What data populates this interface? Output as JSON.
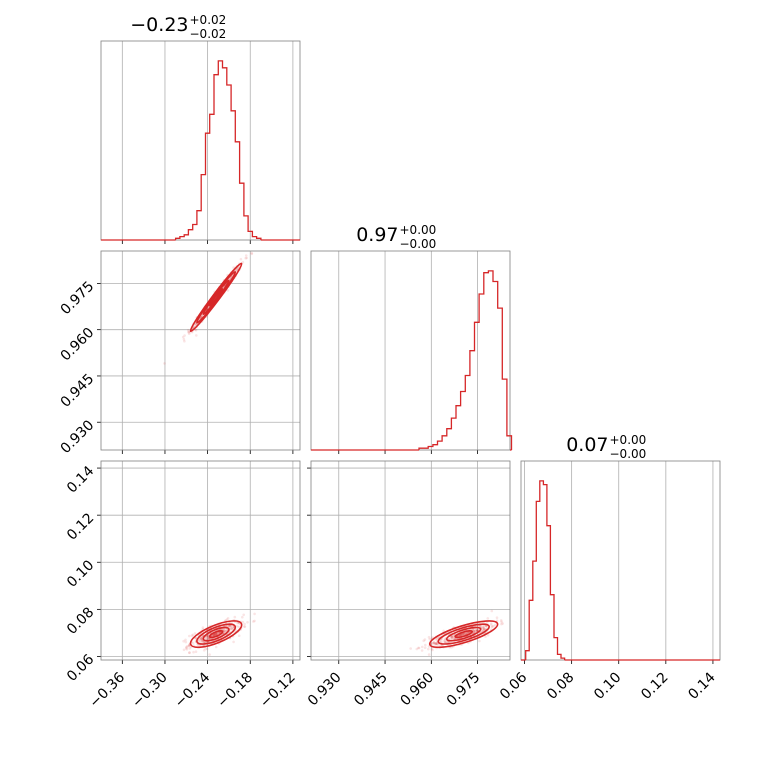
{
  "colors": {
    "series": "#d62728",
    "grid": "#b0b0b0",
    "frame": "#808080"
  },
  "chart_data": {
    "type": "corner",
    "parameters": [
      {
        "title": {
          "main": "−0.23",
          "sup": "+0.02",
          "sub": "−0.02"
        },
        "range": [
          -0.39,
          -0.11
        ],
        "ticks": [
          -0.36,
          -0.3,
          -0.24,
          -0.18,
          -0.12
        ],
        "tick_labels": [
          "−0.36",
          "−0.30",
          "−0.24",
          "−0.18",
          "−0.12"
        ],
        "histogram": {
          "bins": [
            -0.285,
            -0.279,
            -0.273,
            -0.267,
            -0.261,
            -0.255,
            -0.249,
            -0.243,
            -0.237,
            -0.231,
            -0.225,
            -0.219,
            -0.213,
            -0.207,
            -0.201,
            -0.195,
            -0.189,
            -0.183,
            -0.177,
            -0.171,
            -0.165
          ],
          "counts": [
            1,
            2,
            3,
            6,
            9,
            17,
            38,
            62,
            73,
            96,
            104,
            100,
            90,
            75,
            57,
            33,
            14,
            5,
            2,
            1
          ]
        }
      },
      {
        "title": {
          "main": "0.97",
          "sup": "+0.00",
          "sub": "−0.00"
        },
        "range": [
          0.921,
          0.9855
        ],
        "ticks": [
          0.93,
          0.945,
          0.96,
          0.975
        ],
        "tick_labels": [
          "0.930",
          "0.945",
          "0.960",
          "0.975"
        ],
        "histogram": {
          "bins": [
            0.956,
            0.9575,
            0.959,
            0.9605,
            0.962,
            0.9635,
            0.965,
            0.9665,
            0.968,
            0.9695,
            0.971,
            0.9725,
            0.974,
            0.9755,
            0.977,
            0.9785,
            0.98,
            0.9815,
            0.983,
            0.9845,
            0.986
          ],
          "counts": [
            1,
            1,
            2,
            3,
            5,
            8,
            12,
            18,
            25,
            33,
            42,
            56,
            72,
            88,
            100,
            101,
            95,
            80,
            40,
            8
          ]
        }
      },
      {
        "title": {
          "main": "0.07",
          "sup": "+0.00",
          "sub": "−0.00"
        },
        "range": [
          0.0585,
          0.143
        ],
        "ticks": [
          0.06,
          0.08,
          0.1,
          0.12,
          0.14
        ],
        "tick_labels": [
          "0.06",
          "0.08",
          "0.10",
          "0.12",
          "0.14"
        ],
        "histogram": {
          "bins": [
            0.0605,
            0.062,
            0.0635,
            0.065,
            0.0665,
            0.068,
            0.0695,
            0.071,
            0.0725,
            0.074,
            0.0755,
            0.077
          ],
          "counts": [
            5,
            32,
            53,
            85,
            96,
            94,
            72,
            35,
            12,
            3,
            1
          ]
        }
      }
    ],
    "scatter_panels": [
      {
        "x": 0,
        "y": 1,
        "density": "elongated"
      },
      {
        "x": 0,
        "y": 2,
        "density": "blob"
      },
      {
        "x": 1,
        "y": 2,
        "density": "blob"
      }
    ],
    "contour_levels": 4,
    "grid": true,
    "legend": "none"
  }
}
